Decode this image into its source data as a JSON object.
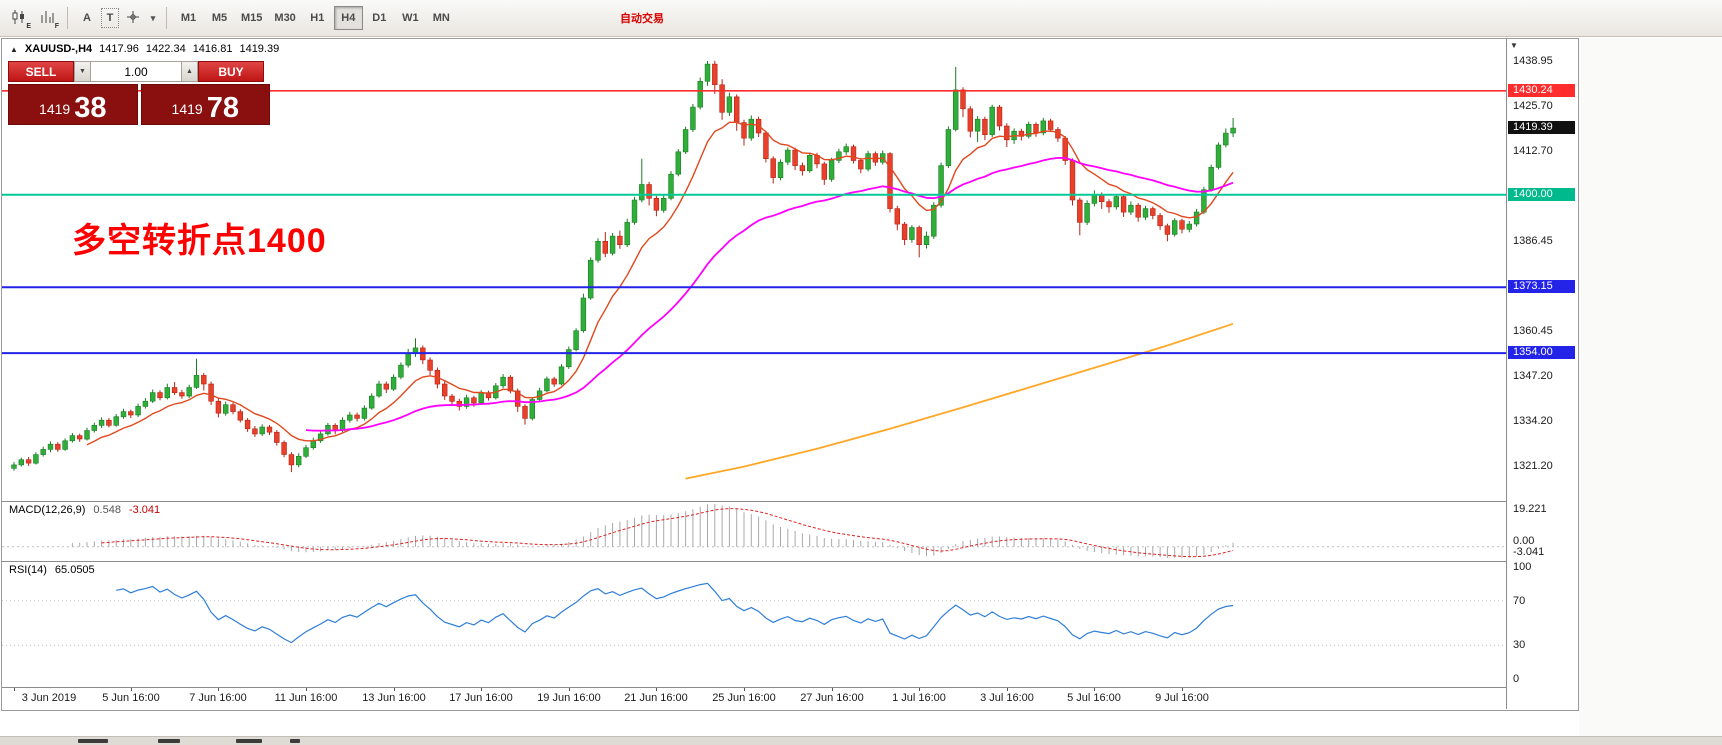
{
  "toolbar": {
    "timeframes": [
      "M1",
      "M5",
      "M15",
      "M30",
      "H1",
      "H4",
      "D1",
      "W1",
      "MN"
    ],
    "active_timeframe": "H4",
    "icon_badges": {
      "candlestick": "E",
      "bars": "F"
    },
    "text_tool_label": "A",
    "label_tool_label": "T",
    "autotrading_label": "自动交易"
  },
  "glyphs": {
    "caret": "▾",
    "vol_down": "▼",
    "vol_up": "▲",
    "window_icon": "▲",
    "scale_marker": "▼"
  },
  "symbol_info": {
    "symbol": "XAUUSD-,H4",
    "open": "1417.96",
    "high": "1422.34",
    "low": "1416.81",
    "close": "1419.39"
  },
  "trade_panel": {
    "sell_label": "SELL",
    "buy_label": "BUY",
    "volume": "1.00",
    "sell_price_small": "1419",
    "sell_price_big": "38",
    "buy_price_small": "1419",
    "buy_price_big": "78"
  },
  "annotation": {
    "text": "多空转折点1400",
    "color": "#ff0000"
  },
  "macd": {
    "label": "MACD(12,26,9)",
    "value_main": "0.548",
    "value_signal": "-3.041",
    "axis_labels": [
      "19.221",
      "0.00",
      "-3.041"
    ]
  },
  "rsi": {
    "label": "RSI(14)",
    "value": "65.0505",
    "axis_labels": [
      "100",
      "70",
      "30",
      "0"
    ]
  },
  "price_tags": [
    {
      "value": "1430.24",
      "bg": "#ff2d2d"
    },
    {
      "value": "1419.39",
      "bg": "#111111"
    },
    {
      "value": "1400.00",
      "bg": "#00b98c"
    },
    {
      "value": "1373.15",
      "bg": "#2424e8"
    },
    {
      "value": "1354.00",
      "bg": "#2424e8"
    }
  ],
  "chart_data": {
    "type": "candlestick",
    "title": "XAUUSD- H4",
    "symbol": "XAUUSD-",
    "timeframe": "H4",
    "ohlc_current": {
      "open": 1417.96,
      "high": 1422.34,
      "low": 1416.81,
      "close": 1419.39
    },
    "ylim": [
      1311.0,
      1445.3
    ],
    "price_ticks": [
      1438.95,
      1425.7,
      1412.7,
      1386.45,
      1360.45,
      1347.2,
      1334.2,
      1321.2
    ],
    "x_labels": [
      {
        "i": 0,
        "label": "3 Jun 2019"
      },
      {
        "i": 16,
        "label": "5 Jun 16:00"
      },
      {
        "i": 28,
        "label": "7 Jun 16:00"
      },
      {
        "i": 40,
        "label": "11 Jun 16:00"
      },
      {
        "i": 52,
        "label": "13 Jun 16:00"
      },
      {
        "i": 64,
        "label": "17 Jun 16:00"
      },
      {
        "i": 76,
        "label": "19 Jun 16:00"
      },
      {
        "i": 88,
        "label": "21 Jun 16:00"
      },
      {
        "i": 100,
        "label": "25 Jun 16:00"
      },
      {
        "i": 112,
        "label": "27 Jun 16:00"
      },
      {
        "i": 124,
        "label": "1 Jul 16:00"
      },
      {
        "i": 136,
        "label": "3 Jul 16:00"
      },
      {
        "i": 148,
        "label": "5 Jul 16:00"
      },
      {
        "i": 160,
        "label": "9 Jul 16:00"
      }
    ],
    "colors": {
      "up": "#2fae39",
      "up_border": "#1b7c24",
      "down": "#e8402a",
      "down_border": "#b52314"
    },
    "hlines": [
      {
        "price": 1430.24,
        "color": "#ff2d2d",
        "width": 1.6
      },
      {
        "price": 1400.0,
        "color": "#00c896",
        "width": 2
      },
      {
        "price": 1373.15,
        "color": "#2424e8",
        "width": 2
      },
      {
        "price": 1354.0,
        "color": "#2424e8",
        "width": 2
      }
    ],
    "mas": [
      {
        "name": "ma-fast",
        "type": "ema",
        "period": 10,
        "color": "#e1481d",
        "width": 1.4
      },
      {
        "name": "ma-mid",
        "type": "ema",
        "period": 40,
        "color": "#ff00ff",
        "width": 1.8
      },
      {
        "name": "ma-slow",
        "type": "points",
        "color": "#ffa726",
        "width": 1.8,
        "points": [
          [
            92,
            1317.5
          ],
          [
            100,
            1321.0
          ],
          [
            110,
            1326.2
          ],
          [
            120,
            1332.0
          ],
          [
            130,
            1338.2
          ],
          [
            140,
            1344.6
          ],
          [
            150,
            1351.0
          ],
          [
            158,
            1356.2
          ],
          [
            167,
            1362.5
          ]
        ]
      }
    ],
    "macd_params": [
      12,
      26,
      9
    ],
    "rsi_period": 14,
    "rsi_levels": [
      70,
      30
    ],
    "candles": [
      [
        1320.5,
        1322.3,
        1319.8,
        1321.5
      ],
      [
        1321.5,
        1323.6,
        1321.0,
        1323.0
      ],
      [
        1323.0,
        1323.8,
        1321.2,
        1322.0
      ],
      [
        1322.0,
        1325.2,
        1321.6,
        1324.5
      ],
      [
        1324.5,
        1326.8,
        1323.9,
        1326.0
      ],
      [
        1326.0,
        1328.3,
        1325.2,
        1327.5
      ],
      [
        1327.5,
        1328.1,
        1325.3,
        1326.0
      ],
      [
        1326.0,
        1329.2,
        1325.6,
        1328.5
      ],
      [
        1328.5,
        1330.8,
        1328.0,
        1330.0
      ],
      [
        1330.0,
        1330.6,
        1328.2,
        1329.0
      ],
      [
        1329.0,
        1332.3,
        1328.6,
        1331.5
      ],
      [
        1331.5,
        1333.8,
        1330.9,
        1333.0
      ],
      [
        1333.0,
        1335.3,
        1332.2,
        1334.5
      ],
      [
        1334.5,
        1335.1,
        1332.4,
        1333.0
      ],
      [
        1333.0,
        1336.3,
        1332.6,
        1335.5
      ],
      [
        1335.5,
        1337.8,
        1334.9,
        1337.0
      ],
      [
        1337.0,
        1337.6,
        1335.1,
        1336.0
      ],
      [
        1336.0,
        1339.3,
        1335.4,
        1338.5
      ],
      [
        1338.5,
        1340.9,
        1337.9,
        1340.0
      ],
      [
        1340.0,
        1343.4,
        1339.5,
        1342.5
      ],
      [
        1342.5,
        1343.2,
        1340.3,
        1341.0
      ],
      [
        1341.0,
        1345.1,
        1340.5,
        1344.0
      ],
      [
        1344.0,
        1345.6,
        1341.8,
        1342.5
      ],
      [
        1342.5,
        1343.3,
        1340.7,
        1341.5
      ],
      [
        1341.5,
        1344.8,
        1340.9,
        1344.0
      ],
      [
        1344.0,
        1352.4,
        1343.6,
        1347.5
      ],
      [
        1347.5,
        1348.2,
        1343.1,
        1345.0
      ],
      [
        1345.0,
        1345.7,
        1338.9,
        1340.0
      ],
      [
        1340.0,
        1340.8,
        1335.3,
        1336.5
      ],
      [
        1336.5,
        1339.9,
        1335.8,
        1339.0
      ],
      [
        1339.0,
        1339.6,
        1336.2,
        1337.0
      ],
      [
        1337.0,
        1337.7,
        1333.8,
        1334.5
      ],
      [
        1334.5,
        1335.1,
        1331.1,
        1332.0
      ],
      [
        1332.0,
        1332.8,
        1329.6,
        1330.5
      ],
      [
        1330.5,
        1333.3,
        1329.9,
        1332.5
      ],
      [
        1332.5,
        1333.1,
        1330.2,
        1331.0
      ],
      [
        1331.0,
        1331.6,
        1327.1,
        1328.0
      ],
      [
        1328.0,
        1328.6,
        1323.7,
        1324.5
      ],
      [
        1324.5,
        1325.2,
        1319.4,
        1321.5
      ],
      [
        1321.5,
        1324.9,
        1320.8,
        1324.0
      ],
      [
        1324.0,
        1327.3,
        1323.5,
        1326.5
      ],
      [
        1326.5,
        1329.4,
        1325.9,
        1328.5
      ],
      [
        1328.5,
        1331.2,
        1327.9,
        1330.5
      ],
      [
        1330.5,
        1333.7,
        1330.0,
        1333.0
      ],
      [
        1333.0,
        1333.6,
        1330.4,
        1331.5
      ],
      [
        1331.5,
        1335.3,
        1331.0,
        1334.5
      ],
      [
        1334.5,
        1336.9,
        1333.8,
        1336.0
      ],
      [
        1336.0,
        1336.7,
        1334.1,
        1335.0
      ],
      [
        1335.0,
        1338.8,
        1334.4,
        1338.0
      ],
      [
        1338.0,
        1342.3,
        1337.5,
        1341.5
      ],
      [
        1341.5,
        1345.9,
        1341.0,
        1345.0
      ],
      [
        1345.0,
        1345.7,
        1342.4,
        1343.5
      ],
      [
        1343.5,
        1347.8,
        1343.0,
        1347.0
      ],
      [
        1347.0,
        1351.3,
        1346.4,
        1350.5
      ],
      [
        1350.5,
        1355.2,
        1349.8,
        1354.0
      ],
      [
        1354.0,
        1358.3,
        1352.9,
        1355.5
      ],
      [
        1355.5,
        1356.2,
        1350.8,
        1352.0
      ],
      [
        1352.0,
        1352.7,
        1347.6,
        1349.0
      ],
      [
        1349.0,
        1349.8,
        1343.7,
        1345.0
      ],
      [
        1345.0,
        1346.2,
        1340.4,
        1341.5
      ],
      [
        1341.5,
        1342.1,
        1338.9,
        1340.0
      ],
      [
        1340.0,
        1340.7,
        1337.3,
        1338.5
      ],
      [
        1338.5,
        1341.9,
        1337.8,
        1341.0
      ],
      [
        1341.0,
        1341.6,
        1338.4,
        1339.5
      ],
      [
        1339.5,
        1343.2,
        1338.9,
        1342.5
      ],
      [
        1342.5,
        1343.1,
        1340.2,
        1341.0
      ],
      [
        1341.0,
        1345.3,
        1340.5,
        1344.5
      ],
      [
        1344.5,
        1347.9,
        1343.8,
        1347.0
      ],
      [
        1347.0,
        1347.6,
        1342.3,
        1343.0
      ],
      [
        1343.0,
        1343.7,
        1336.9,
        1338.5
      ],
      [
        1338.5,
        1339.1,
        1333.2,
        1335.0
      ],
      [
        1335.0,
        1341.2,
        1334.4,
        1340.5
      ],
      [
        1340.5,
        1343.9,
        1339.9,
        1343.0
      ],
      [
        1343.0,
        1347.2,
        1342.6,
        1346.5
      ],
      [
        1346.5,
        1347.1,
        1344.2,
        1345.0
      ],
      [
        1345.0,
        1350.8,
        1344.6,
        1350.0
      ],
      [
        1350.0,
        1355.9,
        1349.4,
        1355.0
      ],
      [
        1355.0,
        1361.2,
        1354.5,
        1360.5
      ],
      [
        1360.5,
        1371.3,
        1359.9,
        1370.0
      ],
      [
        1370.0,
        1381.8,
        1369.5,
        1381.0
      ],
      [
        1381.0,
        1387.4,
        1380.3,
        1386.5
      ],
      [
        1386.5,
        1389.2,
        1381.9,
        1383.0
      ],
      [
        1383.0,
        1388.9,
        1382.4,
        1388.0
      ],
      [
        1388.0,
        1389.6,
        1384.3,
        1385.5
      ],
      [
        1385.5,
        1393.1,
        1384.8,
        1392.0
      ],
      [
        1392.0,
        1399.4,
        1391.3,
        1398.5
      ],
      [
        1398.5,
        1410.5,
        1397.8,
        1403.0
      ],
      [
        1403.0,
        1403.8,
        1396.9,
        1399.0
      ],
      [
        1399.0,
        1399.7,
        1393.8,
        1395.5
      ],
      [
        1395.5,
        1399.9,
        1394.8,
        1399.0
      ],
      [
        1399.0,
        1406.9,
        1398.4,
        1406.0
      ],
      [
        1406.0,
        1413.3,
        1405.4,
        1412.5
      ],
      [
        1412.5,
        1419.8,
        1411.9,
        1419.0
      ],
      [
        1419.0,
        1426.4,
        1418.3,
        1425.5
      ],
      [
        1425.5,
        1434.1,
        1424.8,
        1433.0
      ],
      [
        1433.0,
        1438.9,
        1431.7,
        1438.0
      ],
      [
        1438.0,
        1438.95,
        1429.3,
        1432.0
      ],
      [
        1432.0,
        1433.6,
        1421.8,
        1424.0
      ],
      [
        1424.0,
        1429.7,
        1422.9,
        1428.5
      ],
      [
        1428.5,
        1429.2,
        1418.6,
        1421.0
      ],
      [
        1421.0,
        1421.8,
        1414.3,
        1416.5
      ],
      [
        1416.5,
        1423.1,
        1415.7,
        1422.0
      ],
      [
        1422.0,
        1422.7,
        1416.8,
        1418.0
      ],
      [
        1418.0,
        1418.6,
        1409.4,
        1410.5
      ],
      [
        1410.5,
        1411.2,
        1403.3,
        1405.0
      ],
      [
        1405.0,
        1410.3,
        1404.2,
        1409.5
      ],
      [
        1409.5,
        1413.8,
        1408.7,
        1413.0
      ],
      [
        1413.0,
        1413.7,
        1407.2,
        1408.5
      ],
      [
        1408.5,
        1409.4,
        1405.6,
        1407.0
      ],
      [
        1407.0,
        1412.3,
        1406.4,
        1411.5
      ],
      [
        1411.5,
        1412.2,
        1407.7,
        1409.0
      ],
      [
        1409.0,
        1409.6,
        1402.9,
        1404.5
      ],
      [
        1404.5,
        1410.8,
        1403.8,
        1410.0
      ],
      [
        1410.0,
        1413.4,
        1409.2,
        1412.5
      ],
      [
        1412.5,
        1414.9,
        1411.6,
        1414.0
      ],
      [
        1414.0,
        1414.6,
        1409.1,
        1410.0
      ],
      [
        1410.0,
        1410.7,
        1406.3,
        1407.5
      ],
      [
        1407.5,
        1412.8,
        1406.8,
        1412.0
      ],
      [
        1412.0,
        1412.6,
        1408.4,
        1409.5
      ],
      [
        1409.5,
        1412.9,
        1408.8,
        1412.0
      ],
      [
        1412.0,
        1412.4,
        1394.9,
        1396.0
      ],
      [
        1396.0,
        1396.8,
        1389.7,
        1391.5
      ],
      [
        1391.5,
        1392.1,
        1385.4,
        1387.0
      ],
      [
        1387.0,
        1391.2,
        1386.1,
        1390.5
      ],
      [
        1390.5,
        1391.1,
        1381.8,
        1385.5
      ],
      [
        1385.5,
        1389.3,
        1384.4,
        1388.0
      ],
      [
        1388.0,
        1397.9,
        1387.2,
        1397.0
      ],
      [
        1397.0,
        1409.4,
        1396.3,
        1408.5
      ],
      [
        1408.5,
        1419.9,
        1407.8,
        1419.0
      ],
      [
        1419.0,
        1437.2,
        1418.4,
        1430.5
      ],
      [
        1430.5,
        1431.3,
        1422.6,
        1425.0
      ],
      [
        1425.0,
        1425.8,
        1416.7,
        1418.5
      ],
      [
        1418.5,
        1422.9,
        1415.4,
        1422.0
      ],
      [
        1422.0,
        1422.7,
        1415.9,
        1417.5
      ],
      [
        1417.5,
        1426.2,
        1416.8,
        1425.5
      ],
      [
        1425.5,
        1426.1,
        1418.7,
        1420.0
      ],
      [
        1420.0,
        1420.8,
        1413.9,
        1416.0
      ],
      [
        1416.0,
        1419.3,
        1414.8,
        1418.5
      ],
      [
        1418.5,
        1419.2,
        1415.8,
        1417.0
      ],
      [
        1417.0,
        1421.3,
        1416.4,
        1420.5
      ],
      [
        1420.5,
        1421.1,
        1416.9,
        1418.0
      ],
      [
        1418.0,
        1422.4,
        1417.3,
        1421.5
      ],
      [
        1421.5,
        1422.1,
        1418.2,
        1419.0
      ],
      [
        1419.0,
        1419.7,
        1415.4,
        1416.5
      ],
      [
        1416.5,
        1417.1,
        1408.7,
        1410.0
      ],
      [
        1410.0,
        1410.6,
        1396.9,
        1398.5
      ],
      [
        1398.5,
        1399.2,
        1388.2,
        1392.0
      ],
      [
        1392.0,
        1398.4,
        1391.2,
        1397.5
      ],
      [
        1397.5,
        1401.3,
        1396.6,
        1400.0
      ],
      [
        1400.0,
        1400.7,
        1395.9,
        1398.0
      ],
      [
        1398.0,
        1398.7,
        1394.8,
        1396.5
      ],
      [
        1396.5,
        1400.2,
        1395.7,
        1399.5
      ],
      [
        1399.5,
        1400.1,
        1393.6,
        1395.0
      ],
      [
        1395.0,
        1398.1,
        1394.1,
        1397.0
      ],
      [
        1397.0,
        1397.6,
        1392.2,
        1393.5
      ],
      [
        1393.5,
        1396.8,
        1392.7,
        1396.0
      ],
      [
        1396.0,
        1396.6,
        1392.9,
        1394.0
      ],
      [
        1394.0,
        1394.7,
        1389.8,
        1391.0
      ],
      [
        1391.0,
        1391.6,
        1386.5,
        1388.5
      ],
      [
        1388.5,
        1393.2,
        1387.9,
        1392.5
      ],
      [
        1392.5,
        1393.1,
        1388.8,
        1390.0
      ],
      [
        1390.0,
        1392.4,
        1389.1,
        1391.5
      ],
      [
        1391.5,
        1395.9,
        1390.8,
        1395.0
      ],
      [
        1395.0,
        1402.3,
        1394.4,
        1401.5
      ],
      [
        1401.5,
        1408.8,
        1400.9,
        1408.0
      ],
      [
        1408.0,
        1415.2,
        1407.4,
        1414.5
      ],
      [
        1414.5,
        1419.3,
        1413.8,
        1417.96
      ],
      [
        1417.96,
        1422.34,
        1416.81,
        1419.39
      ]
    ]
  }
}
